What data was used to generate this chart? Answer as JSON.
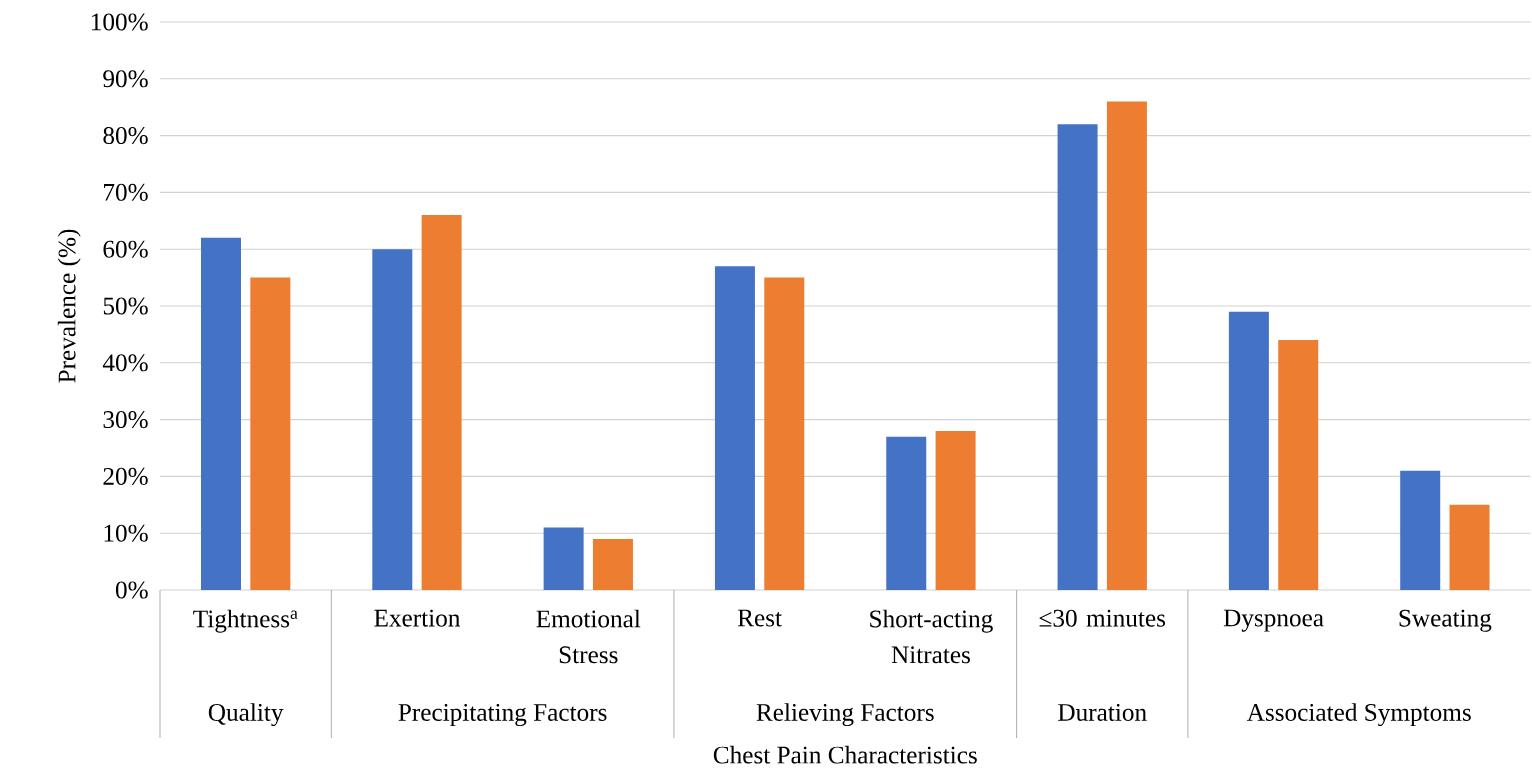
{
  "chart_data": {
    "type": "bar",
    "xlabel": "Chest Pain Characteristics",
    "ylabel": "Prevalence (%)",
    "categories": [
      "Tightness$^{a}$",
      "Exertion",
      "Emotional Stress",
      "Rest",
      "Short-acting Nitrates",
      "≤30 minutes",
      "Dyspnoea",
      "Sweating"
    ],
    "series": [
      {
        "color": "#4472c4",
        "values": [
          62,
          60,
          11,
          57,
          27,
          82,
          49,
          21
        ]
      },
      {
        "color": "#ed7d31",
        "values": [
          55,
          66,
          9,
          55,
          28,
          86,
          44,
          15
        ]
      }
    ],
    "ylim": [
      0,
      100
    ],
    "yticks": [
      {
        "value": 0,
        "label": "0%"
      },
      {
        "value": 10,
        "label": "10%"
      },
      {
        "value": 20,
        "label": "20%"
      },
      {
        "value": 30,
        "label": "30%"
      },
      {
        "value": 40,
        "label": "40%"
      },
      {
        "value": 50,
        "label": "50%"
      },
      {
        "value": 60,
        "label": "60%"
      },
      {
        "value": 70,
        "label": "70%"
      },
      {
        "value": 80,
        "label": "80%"
      },
      {
        "value": 90,
        "label": "90%"
      },
      {
        "value": 100,
        "label": "100%"
      }
    ],
    "grid": "y",
    "annotations": [
      "Quality",
      "Precipitating Factors",
      "Relieving Factors",
      "Duration",
      "Associated Symptoms"
    ]
  }
}
